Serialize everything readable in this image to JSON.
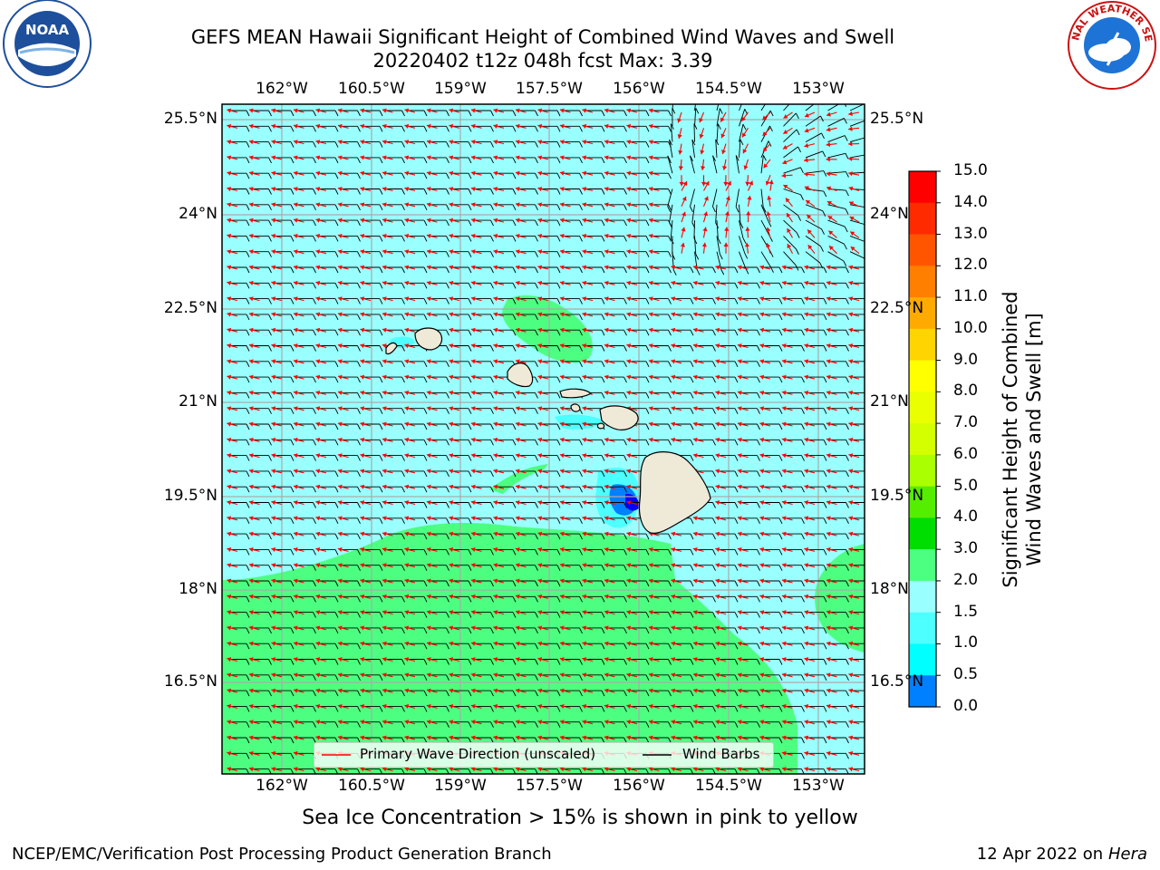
{
  "header": {
    "title_line1": "GEFS MEAN Hawaii Significant Height of Combined Wind Waves and Swell",
    "title_line2": "20220402 t12z 048h fcst   Max: 3.39"
  },
  "logos": {
    "noaa": {
      "icon": "noaa-logo",
      "text": "NOAA"
    },
    "nws": {
      "icon": "nws-logo",
      "text": "NATIONAL WEATHER SERVICE"
    }
  },
  "axes": {
    "lon_labels": [
      "162°W",
      "160.5°W",
      "159°W",
      "157.5°W",
      "156°W",
      "154.5°W",
      "153°W"
    ],
    "lat_labels": [
      "25.5°N",
      "24°N",
      "22.5°N",
      "21°N",
      "19.5°N",
      "18°N",
      "16.5°N"
    ]
  },
  "legend": {
    "wave_direction": "Primary Wave Direction (unscaled)",
    "wind_barbs": "Wind Barbs"
  },
  "colorbar": {
    "label_line1": "Significant Height of Combined",
    "label_line2": "Wind Waves and Swell [m]",
    "ticks": [
      "15.0",
      "14.0",
      "13.0",
      "12.0",
      "11.0",
      "10.0",
      "9.0",
      "8.0",
      "7.0",
      "6.0",
      "5.0",
      "4.0",
      "3.0",
      "2.0",
      "1.5",
      "1.0",
      "0.5",
      "0.0"
    ],
    "colors": [
      "#ff0000",
      "#ff2a00",
      "#ff5500",
      "#ff7f00",
      "#ffaa00",
      "#ffd400",
      "#ffff00",
      "#eaff00",
      "#d4ff00",
      "#aaff00",
      "#55ee00",
      "#00dd00",
      "#4dff80",
      "#99ffff",
      "#4dffff",
      "#00ffff",
      "#007fff",
      "#0000ff"
    ]
  },
  "colors": {
    "sea_fill": "#99ffff",
    "green_fill": "#4dff80",
    "land": "#efe9d8",
    "arrow": "#ff0000"
  },
  "note": "Sea Ice Concentration > 15% is shown in pink to yellow",
  "footer": {
    "left": "NCEP/EMC/Verification Post Processing Product Generation Branch",
    "right_date": "12 Apr 2022 on ",
    "right_host": "Hera"
  }
}
